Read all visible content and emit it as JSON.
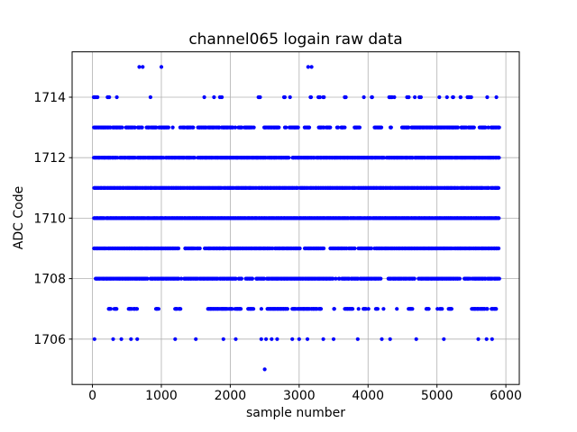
{
  "chart_data": {
    "type": "scatter",
    "title": "channel065 logain raw data",
    "xlabel": "sample number",
    "ylabel": "ADC Code",
    "xlim": [
      -295,
      6195
    ],
    "ylim": [
      1704.5,
      1715.5
    ],
    "xticks": [
      0,
      1000,
      2000,
      3000,
      4000,
      5000,
      6000
    ],
    "yticks": [
      1706,
      1708,
      1710,
      1712,
      1714
    ],
    "grid": true,
    "legend": "none",
    "marker_color": "#0000ff",
    "grid_color": "#b0b0b0",
    "frame_color": "#000000",
    "x_data_range": [
      20,
      5910
    ],
    "bands": [
      {
        "adc_code": 1705,
        "x_points": [
          2500
        ]
      },
      {
        "adc_code": 1706,
        "x_points": [
          30,
          300,
          420,
          560,
          650,
          1200,
          1500,
          1900,
          2080,
          2450,
          2520,
          2600,
          2680,
          2900,
          3000,
          3120,
          3350,
          3500,
          3850,
          4200,
          4320,
          4700,
          5100,
          5600,
          5720,
          5800
        ]
      },
      {
        "adc_code": 1707,
        "density": 0.35,
        "run": 60
      },
      {
        "adc_code": 1708,
        "density": 0.85,
        "run": 200
      },
      {
        "adc_code": 1709,
        "density": 0.93,
        "run": 300
      },
      {
        "adc_code": 1710,
        "density": 0.985,
        "run": 500
      },
      {
        "adc_code": 1711,
        "density": 0.97,
        "run": 400
      },
      {
        "adc_code": 1712,
        "density": 0.94,
        "run": 300
      },
      {
        "adc_code": 1713,
        "density": 0.6,
        "run": 90
      },
      {
        "adc_code": 1714,
        "density": 0.13,
        "run": 25
      },
      {
        "adc_code": 1715,
        "x_points": [
          680,
          730,
          1000,
          3130,
          3180
        ]
      }
    ]
  }
}
